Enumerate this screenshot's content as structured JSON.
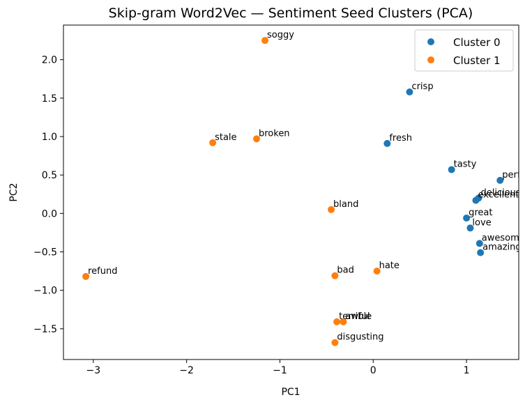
{
  "chart_data": {
    "type": "scatter",
    "title": "Skip-gram Word2Vec — Sentiment Seed Clusters (PCA)",
    "xlabel": "PC1",
    "ylabel": "PC2",
    "xlim": [
      -3.32,
      1.56
    ],
    "ylim": [
      -1.9,
      2.45
    ],
    "xticks": [
      -3,
      -2,
      -1,
      0,
      1
    ],
    "yticks": [
      -1.5,
      -1.0,
      -0.5,
      0.0,
      0.5,
      1.0,
      1.5,
      2.0
    ],
    "xtick_labels": [
      "−3",
      "−2",
      "−1",
      "0",
      "1"
    ],
    "ytick_labels": [
      "−1.5",
      "−1.0",
      "−0.5",
      "0.0",
      "0.5",
      "1.0",
      "1.5",
      "2.0"
    ],
    "grid": false,
    "legend_position": "top-right",
    "series": [
      {
        "name": "Cluster 0",
        "color": "#1f77b4",
        "points": [
          {
            "label": "crisp",
            "x": 0.39,
            "y": 1.58
          },
          {
            "label": "fresh",
            "x": 0.15,
            "y": 0.91
          },
          {
            "label": "tasty",
            "x": 0.84,
            "y": 0.57
          },
          {
            "label": "perfect",
            "x": 1.36,
            "y": 0.43
          },
          {
            "label": "delicious",
            "x": 1.13,
            "y": 0.2
          },
          {
            "label": "excellent",
            "x": 1.1,
            "y": 0.17
          },
          {
            "label": "great",
            "x": 1.0,
            "y": -0.06
          },
          {
            "label": "love",
            "x": 1.04,
            "y": -0.19
          },
          {
            "label": "awesome",
            "x": 1.14,
            "y": -0.39
          },
          {
            "label": "amazing",
            "x": 1.15,
            "y": -0.51
          }
        ]
      },
      {
        "name": "Cluster 1",
        "color": "#ff7f0e",
        "points": [
          {
            "label": "soggy",
            "x": -1.16,
            "y": 2.25
          },
          {
            "label": "stale",
            "x": -1.72,
            "y": 0.92
          },
          {
            "label": "broken",
            "x": -1.25,
            "y": 0.97
          },
          {
            "label": "bland",
            "x": -0.45,
            "y": 0.05
          },
          {
            "label": "refund",
            "x": -3.08,
            "y": -0.82
          },
          {
            "label": "bad",
            "x": -0.41,
            "y": -0.81
          },
          {
            "label": "hate",
            "x": 0.04,
            "y": -0.75
          },
          {
            "label": "terrible",
            "x": -0.39,
            "y": -1.41
          },
          {
            "label": "awful",
            "x": -0.32,
            "y": -1.41
          },
          {
            "label": "disgusting",
            "x": -0.41,
            "y": -1.68
          }
        ]
      }
    ]
  }
}
